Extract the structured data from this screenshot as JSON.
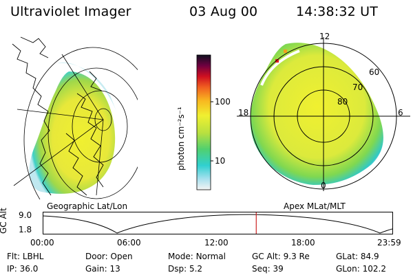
{
  "header": {
    "title": "Ultraviolet Imager",
    "date": "03 Aug 00",
    "time": "14:38:32 UT"
  },
  "left_panel": {
    "caption": "Geographic Lat/Lon"
  },
  "right_panel": {
    "caption": "Apex MLat/MLT",
    "mlt_labels": {
      "top": "12",
      "left": "18",
      "right": "6",
      "bottom": "0"
    },
    "mlat_labels": [
      "60",
      "70",
      "80"
    ]
  },
  "colorbar": {
    "unit_label": "photon cm⁻²s⁻¹",
    "tick_labels": [
      "100",
      "10"
    ],
    "scale": "log"
  },
  "altitude_strip": {
    "y_label": "GC Alt",
    "y_ticks": [
      "9.0",
      "1.8"
    ],
    "x_ticks": [
      "00:00",
      "06:00",
      "12:00",
      "18:00",
      "23:59"
    ],
    "current_time_fraction": 0.61,
    "marker_color": "#cc2222"
  },
  "footer": {
    "row1": [
      {
        "label": "Flt:",
        "value": "LBHL"
      },
      {
        "label": "Door:",
        "value": "Open"
      },
      {
        "label": "Mode:",
        "value": "Normal"
      },
      {
        "label": "GC Alt:",
        "value": "9.3 Re"
      },
      {
        "label": "GLat:",
        "value": "84.9"
      }
    ],
    "row2": [
      {
        "label": "IP:",
        "value": "36.0"
      },
      {
        "label": "Gain:",
        "value": "13"
      },
      {
        "label": "Dsp:",
        "value": "5.2"
      },
      {
        "label": "Seq:",
        "value": "39"
      },
      {
        "label": "GLon:",
        "value": "102.2"
      }
    ]
  }
}
